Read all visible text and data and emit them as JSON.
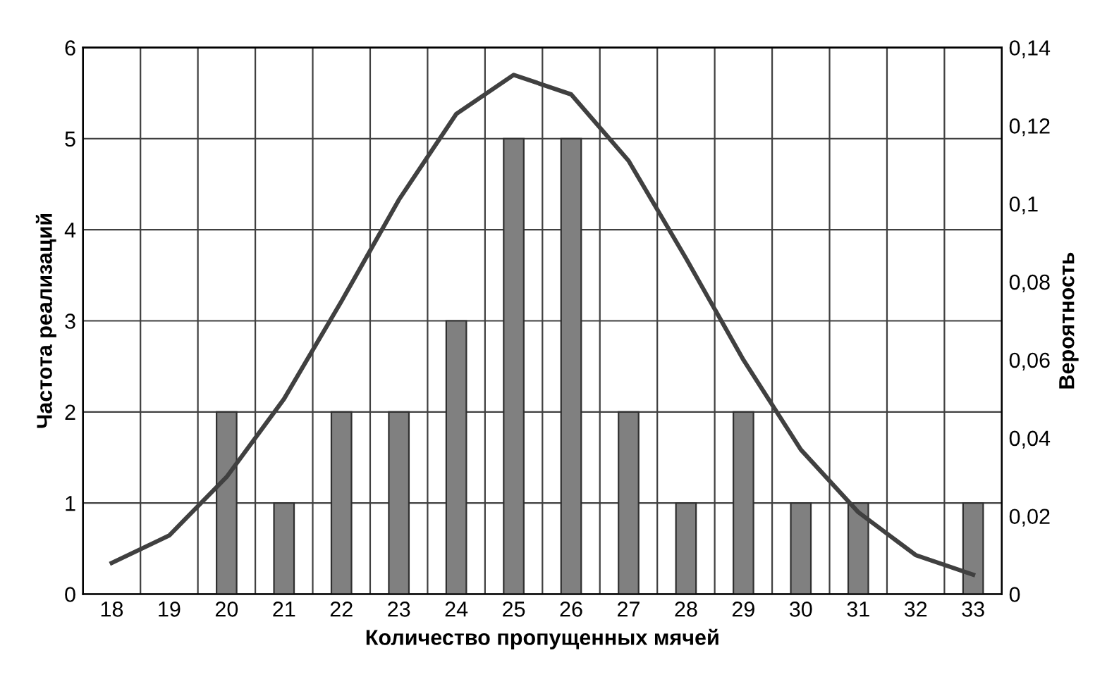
{
  "chart_data": {
    "type": "bar",
    "xlabel": "Количество пропущенных мячей",
    "ylabel": "Частота реализаций",
    "y2label": "Вероятность",
    "categories": [
      "18",
      "19",
      "20",
      "21",
      "22",
      "23",
      "24",
      "25",
      "26",
      "27",
      "28",
      "29",
      "30",
      "31",
      "32",
      "33"
    ],
    "series": [
      {
        "color": "#808080",
        "values": [
          0,
          0,
          2,
          1,
          2,
          2,
          3,
          5,
          5,
          2,
          1,
          2,
          1,
          1,
          0,
          1
        ]
      },
      {
        "type": "line",
        "axis": "y2",
        "color": "#404040",
        "values": [
          0.008,
          0.015,
          0.03,
          0.05,
          0.075,
          0.101,
          0.123,
          0.133,
          0.128,
          0.111,
          0.086,
          0.06,
          0.037,
          0.021,
          0.01,
          0.005
        ]
      }
    ],
    "ylim": [
      0,
      6
    ],
    "yticks": [
      0,
      1,
      2,
      3,
      4,
      5,
      6
    ],
    "y2lim": [
      0,
      0.14
    ],
    "y2ticks": [
      0,
      {
        "value": 0.02,
        "label": "0,02"
      },
      {
        "value": 0.04,
        "label": "0,04"
      },
      {
        "value": 0.06,
        "label": "0,06"
      },
      {
        "value": 0.08,
        "label": "0,08"
      },
      {
        "value": 0.1,
        "label": "0,1"
      },
      {
        "value": 0.12,
        "label": "0,12"
      },
      {
        "value": 0.14,
        "label": "0,14"
      }
    ],
    "grid": true,
    "legend": false,
    "line_style": "solid",
    "marker": "none"
  }
}
